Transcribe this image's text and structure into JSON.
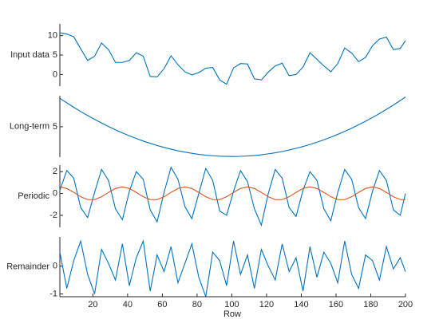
{
  "chart_data": {
    "type": "line",
    "xlabel": "Row",
    "x": [
      1,
      5,
      9,
      13,
      17,
      21,
      25,
      29,
      33,
      37,
      41,
      45,
      49,
      53,
      57,
      61,
      65,
      69,
      73,
      77,
      81,
      85,
      89,
      93,
      97,
      101,
      105,
      109,
      113,
      117,
      121,
      125,
      129,
      133,
      137,
      141,
      145,
      149,
      153,
      157,
      161,
      165,
      169,
      173,
      177,
      181,
      185,
      189,
      193,
      197,
      200
    ],
    "xlim": [
      1,
      200
    ],
    "xticks": [
      20,
      40,
      60,
      80,
      100,
      120,
      140,
      160,
      180,
      200
    ],
    "panels": [
      {
        "ylabel": "Input data",
        "ylim": [
          -3,
          13
        ],
        "yticks": [
          0,
          5,
          10
        ],
        "series": [
          {
            "color": "#0072BD",
            "values": [
              10.7,
              10.4,
              9.7,
              6.6,
              3.6,
              4.7,
              8.1,
              6.4,
              3.1,
              3.1,
              3.6,
              5.6,
              4.7,
              -0.5,
              -0.6,
              1.5,
              4.8,
              2.5,
              0.7,
              -0.1,
              0.5,
              1.6,
              1.8,
              -1.4,
              -2.5,
              1.7,
              2.8,
              2.7,
              -1.1,
              -1.4,
              0.6,
              2.2,
              2.9,
              -0.3,
              0.0,
              1.9,
              5.6,
              3.9,
              2.2,
              0.7,
              2.8,
              6.8,
              5.5,
              3.3,
              4.4,
              7.4,
              9.1,
              9.6,
              6.4,
              6.7,
              8.7
            ]
          }
        ]
      },
      {
        "ylabel": "Long-term",
        "ylim": [
          0.4,
          9.7
        ],
        "yticks": [
          5
        ],
        "series": [
          {
            "color": "#0072BD",
            "values": [
              9.32,
              8.62,
              7.95,
              7.31,
              6.7,
              6.12,
              5.56,
              5.04,
              4.54,
              4.07,
              3.63,
              3.22,
              2.84,
              2.49,
              2.16,
              1.87,
              1.6,
              1.36,
              1.16,
              0.98,
              0.82,
              0.7,
              0.61,
              0.54,
              0.51,
              0.5,
              0.52,
              0.57,
              0.65,
              0.76,
              0.9,
              1.06,
              1.26,
              1.48,
              1.73,
              2.01,
              2.32,
              2.66,
              3.03,
              3.42,
              3.85,
              4.3,
              4.78,
              5.3,
              5.84,
              6.4,
              7.0,
              7.63,
              8.28,
              8.97,
              9.5
            ]
          }
        ]
      },
      {
        "ylabel": "Periodic",
        "ylim": [
          -3.1,
          2.6
        ],
        "yticks": [
          -2,
          0,
          2
        ],
        "series": [
          {
            "color": "#0072BD",
            "values": [
              0.3,
              2.1,
              1.4,
              -1.3,
              -2.2,
              0.1,
              2.2,
              1.2,
              -1.4,
              -2.4,
              0.2,
              2.0,
              1.3,
              -1.5,
              -2.6,
              0.1,
              2.4,
              1.3,
              -1.2,
              -2.3,
              0.0,
              2.3,
              1.2,
              -1.6,
              -2.0,
              0.2,
              2.1,
              1.1,
              -1.4,
              -2.9,
              0.0,
              2.2,
              1.4,
              -1.3,
              -2.1,
              0.3,
              2.0,
              1.2,
              -1.4,
              -2.5,
              0.1,
              2.2,
              1.3,
              -1.3,
              -2.3,
              0.2,
              2.1,
              1.2,
              -1.5,
              -2.0,
              0.0
            ]
          },
          {
            "color": "#D95319",
            "values": [
              0.6,
              0.46,
              0.1,
              -0.3,
              -0.56,
              -0.56,
              -0.3,
              0.1,
              0.46,
              0.6,
              0.46,
              0.1,
              -0.3,
              -0.56,
              -0.56,
              -0.3,
              0.1,
              0.46,
              0.6,
              0.46,
              0.1,
              -0.3,
              -0.56,
              -0.56,
              -0.3,
              0.1,
              0.46,
              0.6,
              0.46,
              0.1,
              -0.3,
              -0.56,
              -0.56,
              -0.3,
              0.1,
              0.46,
              0.6,
              0.46,
              0.1,
              -0.3,
              -0.56,
              -0.56,
              -0.3,
              0.1,
              0.46,
              0.6,
              0.46,
              0.1,
              -0.3,
              -0.56,
              -0.56
            ]
          }
        ]
      },
      {
        "ylabel": "Remainder",
        "ylim": [
          -1.1,
          1.05
        ],
        "yticks": [
          -1,
          0
        ],
        "series": [
          {
            "color": "#0072BD",
            "values": [
              0.5,
              -0.8,
              0.2,
              0.9,
              -0.3,
              -1.0,
              0.6,
              0.1,
              -0.5,
              0.8,
              -0.7,
              0.3,
              0.9,
              -0.9,
              0.4,
              -0.2,
              0.7,
              -0.6,
              0.1,
              0.8,
              -0.4,
              -1.1,
              0.5,
              0.2,
              -0.7,
              0.9,
              -0.3,
              0.4,
              -0.8,
              0.6,
              0.0,
              -0.5,
              0.8,
              -0.2,
              0.3,
              -0.9,
              0.7,
              -0.4,
              0.5,
              0.1,
              -0.6,
              0.9,
              -0.3,
              -0.8,
              0.4,
              0.2,
              -0.5,
              0.7,
              -0.1,
              0.3,
              -0.2
            ]
          }
        ]
      }
    ]
  }
}
